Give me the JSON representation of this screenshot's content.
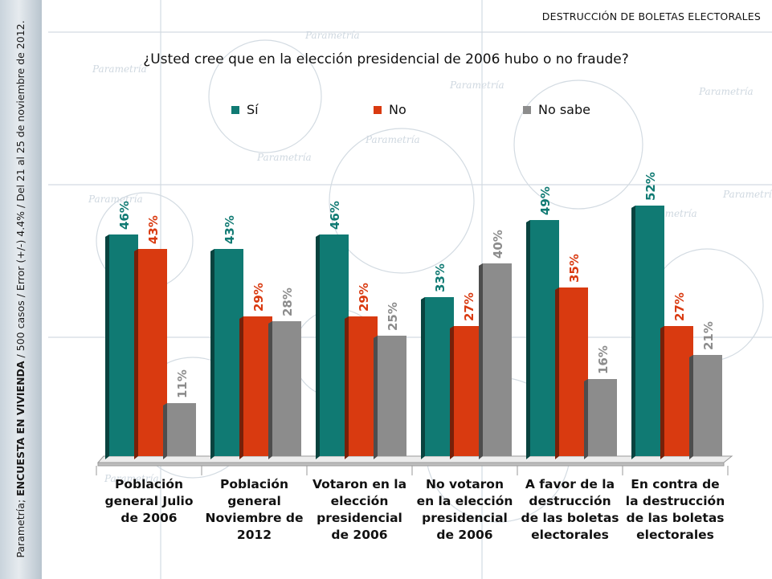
{
  "header": {
    "title": "DESTRUCCIÓN DE BOLETAS ELECTORALES"
  },
  "side_note": {
    "prefix": "Parametría; ",
    "bold": "ENCUESTA EN VIVIENDA",
    "suffix": " / 500 casos / Error (+/-) 4.4% / Del 21 al 25 de noviembre de 2012."
  },
  "watermark_brand": "Parametría",
  "colors": {
    "si": "#107a73",
    "no": "#d93a10",
    "no_sabe": "#8c8c8c"
  },
  "chart_data": {
    "type": "bar",
    "title": "¿Usted cree que en la elección presidencial de 2006 hubo o no fraude?",
    "categories": [
      [
        "Población",
        "general Julio",
        "de 2006"
      ],
      [
        "Población",
        "general",
        "Noviembre de",
        "2012"
      ],
      [
        "Votaron en la",
        "elección",
        "presidencial",
        "de 2006"
      ],
      [
        "No votaron",
        "en la elección",
        "presidencial",
        "de 2006"
      ],
      [
        "A favor de la",
        "destrucción",
        "de las boletas",
        "electorales"
      ],
      [
        "En contra de",
        "la destrucción",
        "de las boletas",
        "electorales"
      ]
    ],
    "series": [
      {
        "name": "Sí",
        "color": "#107a73",
        "values": [
          46,
          43,
          46,
          33,
          49,
          52
        ]
      },
      {
        "name": "No",
        "color": "#d93a10",
        "values": [
          43,
          29,
          29,
          27,
          35,
          27
        ]
      },
      {
        "name": "No sabe",
        "color": "#8c8c8c",
        "values": [
          11,
          28,
          25,
          40,
          16,
          21
        ]
      }
    ],
    "value_suffix": "%",
    "ylim": [
      0,
      60
    ],
    "grid": false,
    "legend_position": "top"
  }
}
